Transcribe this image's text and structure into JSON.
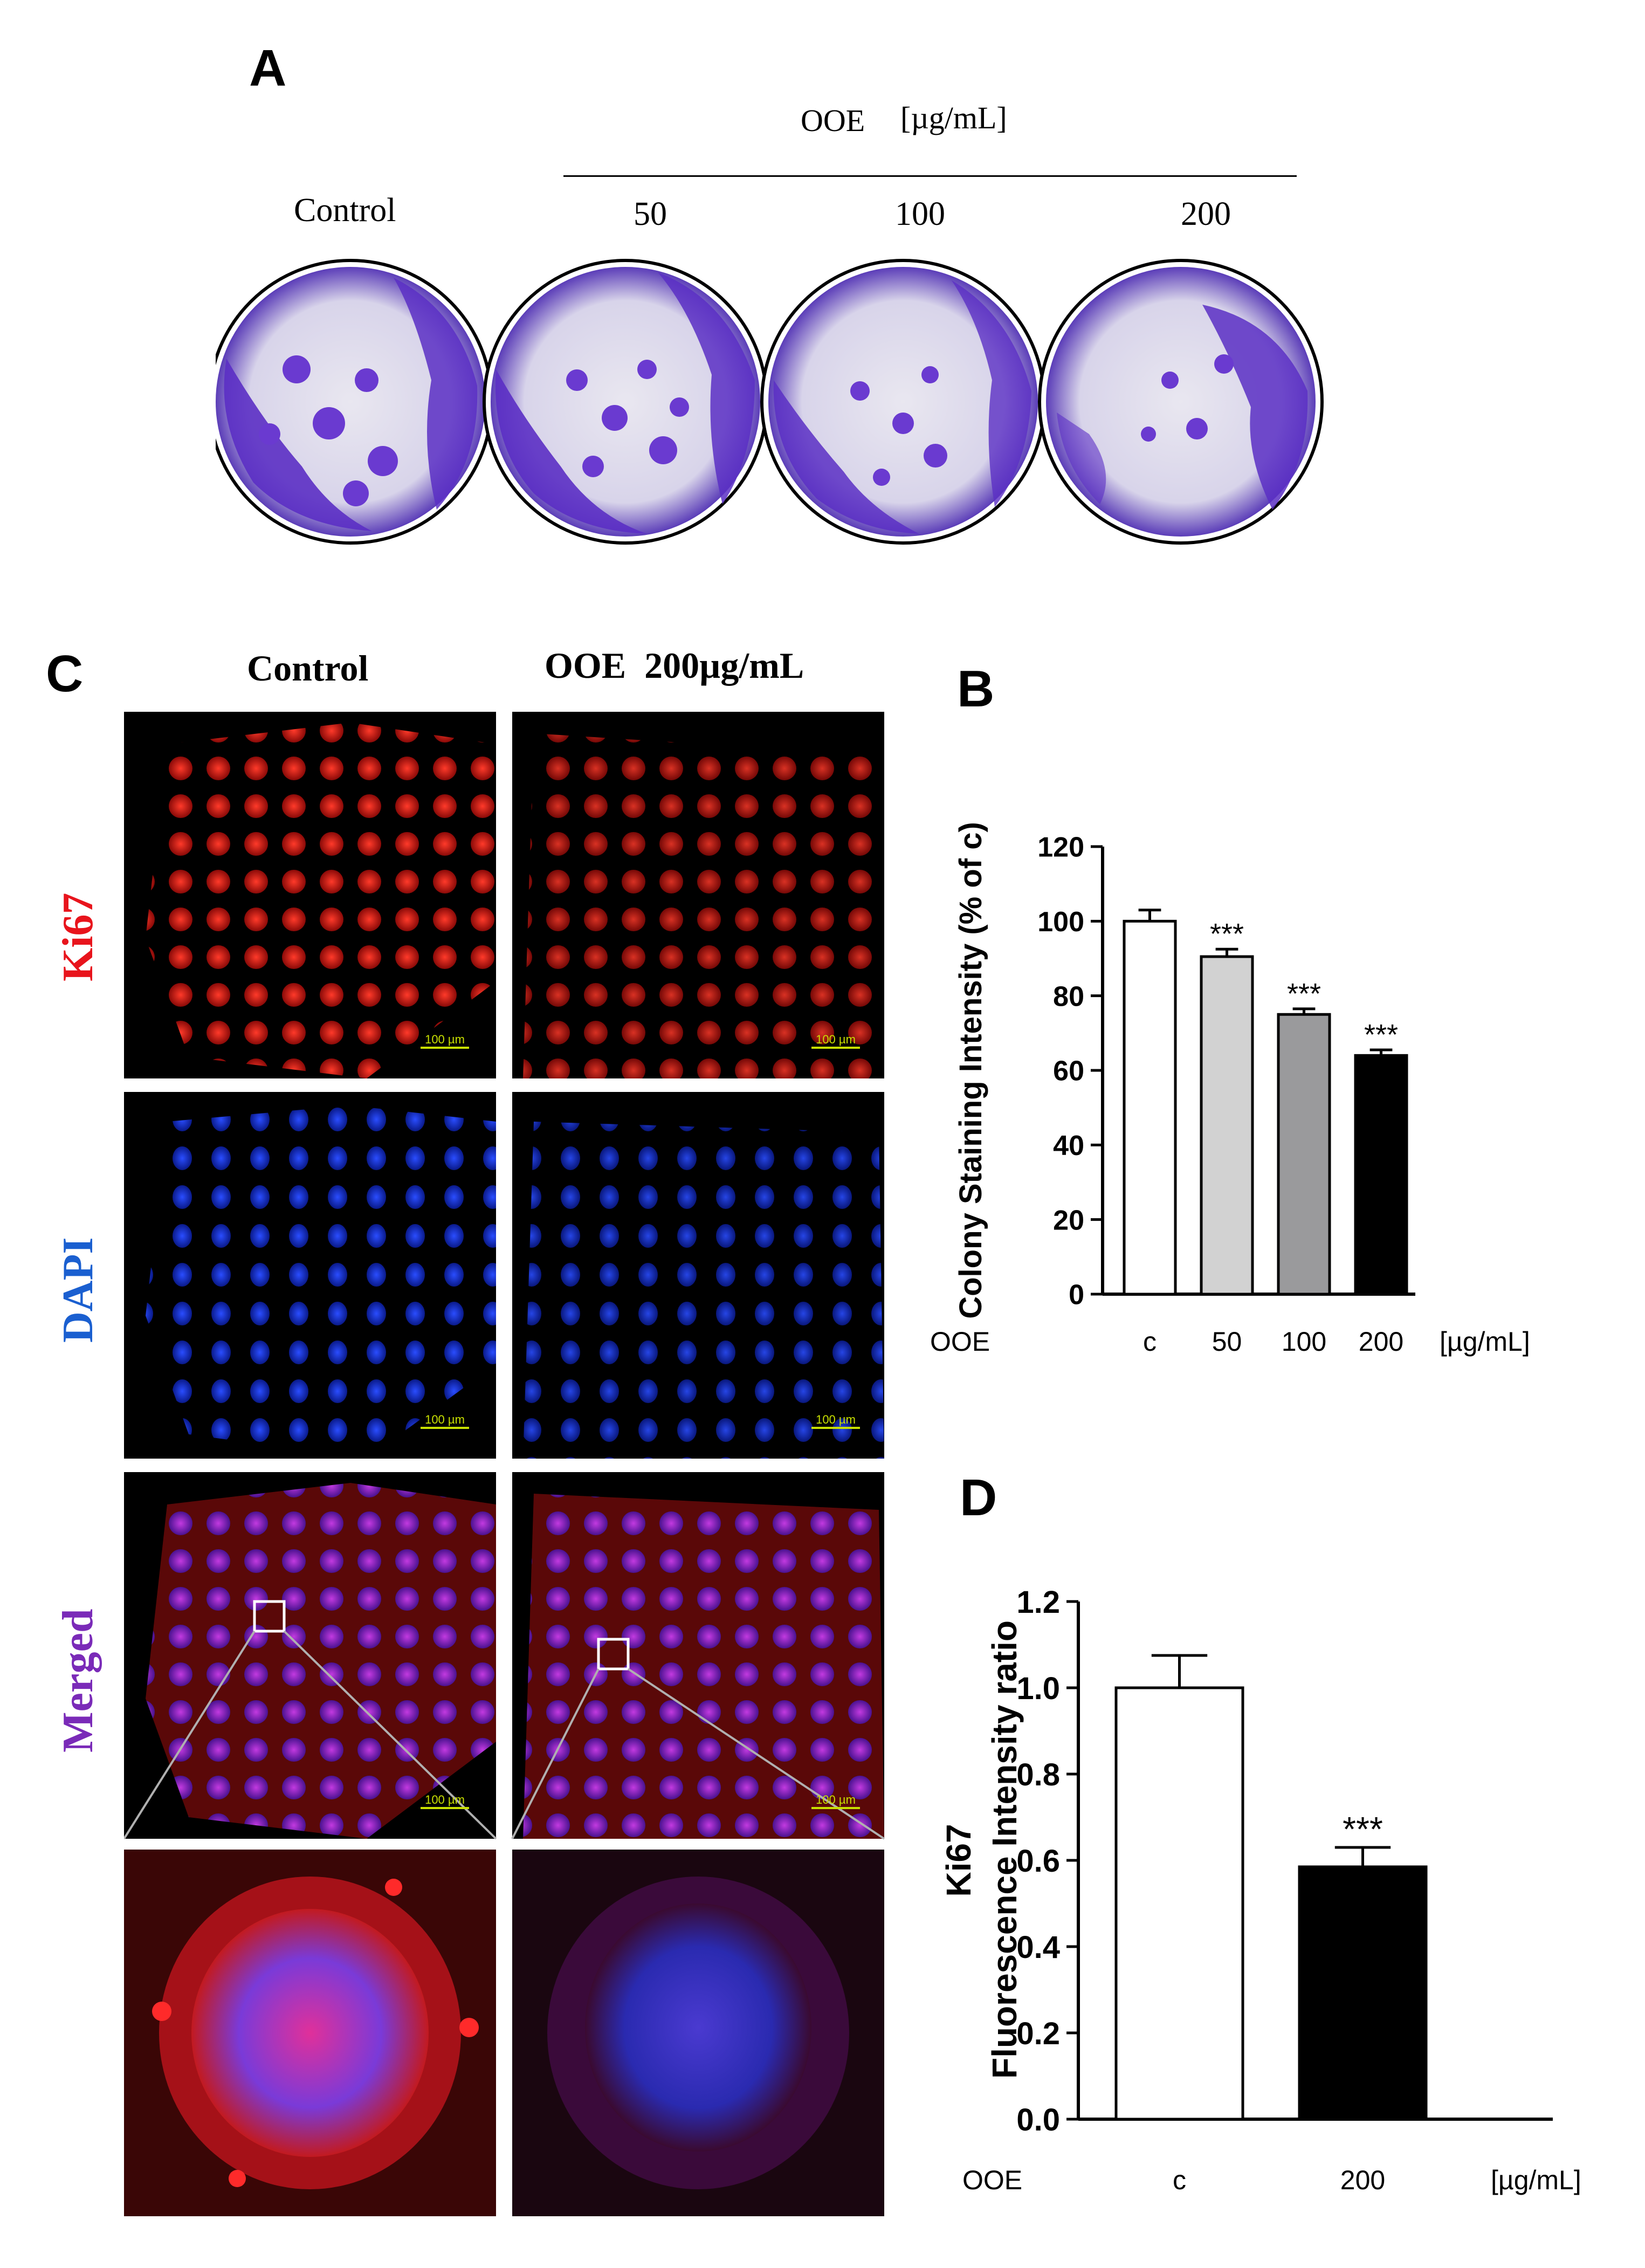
{
  "panel_a": {
    "letter": "A",
    "treatment_label": "OOE",
    "unit_label": "[µg/mL]",
    "control_label": "Control",
    "dose_labels": [
      "50",
      "100",
      "200"
    ]
  },
  "panel_c": {
    "letter": "C",
    "col_control": "Control",
    "col_treated": "OOE  200µg/mL",
    "row_ki67": "Ki67",
    "row_dapi": "DAPI",
    "row_merged": "Merged",
    "scale_bar": "100 µm",
    "colors": {
      "ki67": "#e8141c",
      "dapi": "#1a5fd0",
      "merged": "#7a2ab8"
    }
  },
  "chart_data": [
    {
      "type": "bar",
      "letter": "B",
      "ylabel": "Colony Staining Intensity (% of c)",
      "xprefix": "OOE",
      "xunit": "[µg/mL]",
      "categories": [
        "c",
        "50",
        "100",
        "200"
      ],
      "values": [
        100,
        90.5,
        75,
        64
      ],
      "errors": [
        3,
        2,
        1.5,
        1.5
      ],
      "significance": [
        "",
        "***",
        "***",
        "***"
      ],
      "bar_colors": [
        "#ffffff",
        "#d2d2d2",
        "#9a9a9c",
        "#000000"
      ],
      "ylim": [
        0,
        120
      ],
      "yticks": [
        "0",
        "20",
        "40",
        "60",
        "80",
        "100",
        "120"
      ],
      "grid": false
    },
    {
      "type": "bar",
      "letter": "D",
      "ylabel": "Ki67",
      "ylabel2": "Fluorescence Intensity ratio",
      "xprefix": "OOE",
      "xunit": "[µg/mL]",
      "categories": [
        "c",
        "200"
      ],
      "values": [
        1.0,
        0.585
      ],
      "errors": [
        0.075,
        0.045
      ],
      "significance": [
        "",
        "***"
      ],
      "bar_colors": [
        "#ffffff",
        "#000000"
      ],
      "ylim": [
        0,
        1.2
      ],
      "yticks": [
        "0.0",
        "0.2",
        "0.4",
        "0.6",
        "0.8",
        "1.0",
        "1.2"
      ],
      "grid": false
    }
  ]
}
